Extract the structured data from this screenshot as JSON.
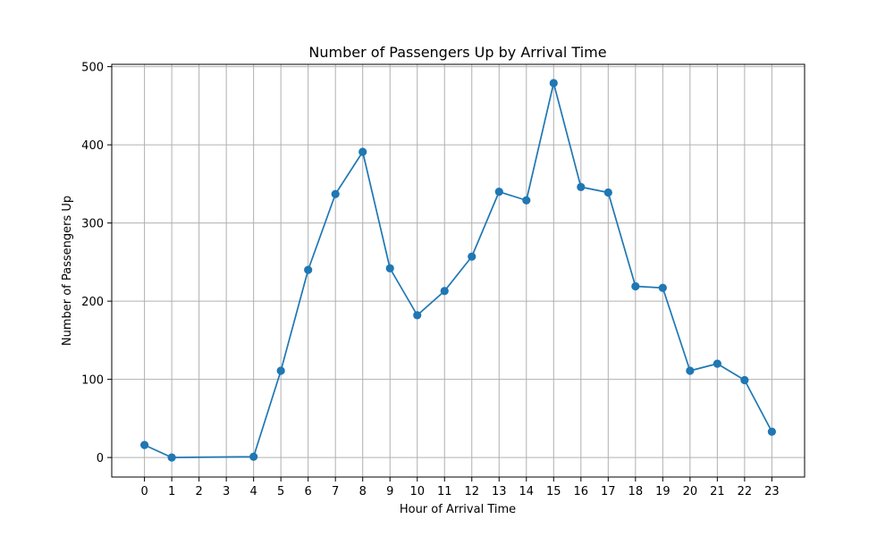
{
  "chart_data": {
    "type": "line",
    "title": "Number of Passengers Up by Arrival Time",
    "xlabel": "Hour of Arrival Time",
    "ylabel": "Number of Passengers Up",
    "x": [
      0,
      1,
      2,
      3,
      4,
      5,
      6,
      7,
      8,
      9,
      10,
      11,
      12,
      13,
      14,
      15,
      16,
      17,
      18,
      19,
      20,
      21,
      22,
      23
    ],
    "xticks": [
      "0",
      "1",
      "2",
      "3",
      "4",
      "5",
      "6",
      "7",
      "8",
      "9",
      "10",
      "11",
      "12",
      "13",
      "14",
      "15",
      "16",
      "17",
      "18",
      "19",
      "20",
      "21",
      "22",
      "23"
    ],
    "yticks": [
      "0",
      "100",
      "200",
      "300",
      "400",
      "500"
    ],
    "xlim": [
      -1.2,
      24.2
    ],
    "ylim": [
      -25,
      503
    ],
    "grid": true,
    "series": [
      {
        "points": [
          [
            0,
            16
          ],
          [
            1,
            0
          ],
          [
            4,
            1
          ],
          [
            5,
            111
          ],
          [
            6,
            240
          ],
          [
            7,
            337
          ],
          [
            8,
            391
          ],
          [
            9,
            242
          ],
          [
            10,
            182
          ],
          [
            11,
            213
          ],
          [
            12,
            257
          ],
          [
            13,
            340
          ],
          [
            14,
            329
          ],
          [
            15,
            479
          ],
          [
            16,
            346
          ],
          [
            17,
            339
          ],
          [
            18,
            219
          ],
          [
            19,
            217
          ],
          [
            20,
            111
          ],
          [
            21,
            120
          ],
          [
            22,
            99
          ],
          [
            23,
            33
          ]
        ],
        "color": "#1f77b4",
        "marker": "circle"
      }
    ]
  }
}
